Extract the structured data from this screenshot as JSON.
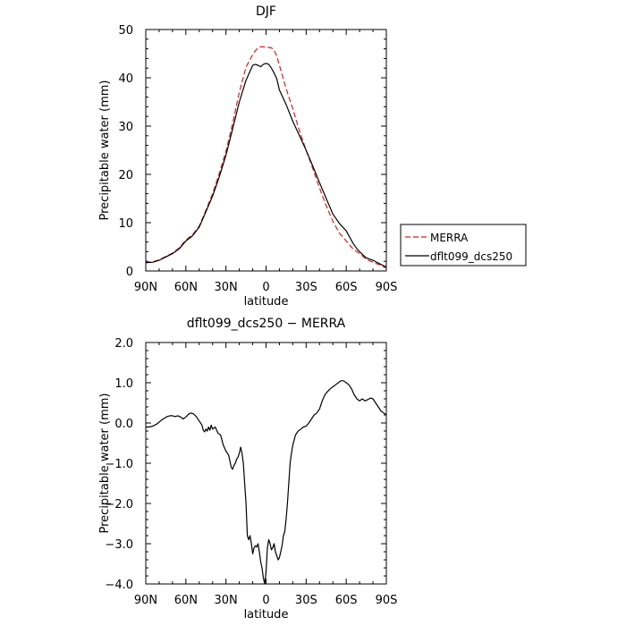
{
  "chart_data": [
    {
      "type": "line",
      "title": "DJF",
      "xlabel": "latitude",
      "ylabel": "Precipitable water (mm)",
      "xlim": [
        90,
        -90
      ],
      "ylim": [
        0,
        50
      ],
      "x_ticks": [
        90,
        60,
        30,
        0,
        -30,
        -60,
        -90
      ],
      "x_tick_labels": [
        "90N",
        "60N",
        "30N",
        "0",
        "30S",
        "60S",
        "90S"
      ],
      "y_ticks": [
        0,
        10,
        20,
        30,
        40,
        50
      ],
      "y_tick_labels": [
        "0",
        "10",
        "20",
        "30",
        "40",
        "50"
      ],
      "grid": false,
      "legend_position": "right",
      "series": [
        {
          "name": "MERRA",
          "color": "#e31a1c",
          "style": "dashed",
          "x": [
            90,
            85,
            80,
            75,
            70,
            65,
            60,
            55,
            50,
            45,
            40,
            35,
            30,
            25,
            20,
            15,
            10,
            8,
            6,
            4,
            2,
            0,
            -2,
            -4,
            -6,
            -8,
            -10,
            -15,
            -20,
            -25,
            -30,
            -35,
            -40,
            -45,
            -50,
            -55,
            -60,
            -65,
            -68,
            -70,
            -75,
            -80,
            -85,
            -90
          ],
          "y": [
            1.8,
            1.9,
            2.3,
            3.0,
            3.7,
            4.8,
            6.4,
            7.5,
            9.3,
            12.6,
            16.0,
            20.2,
            24.8,
            30.5,
            37.0,
            42.2,
            44.8,
            45.6,
            46.2,
            46.4,
            46.4,
            46.3,
            46.3,
            46.2,
            45.7,
            44.5,
            42.6,
            37.8,
            33.6,
            29.0,
            25.0,
            21.2,
            17.2,
            13.5,
            10.3,
            7.8,
            6.2,
            4.6,
            4.0,
            3.6,
            2.4,
            1.8,
            1.3,
            0.6
          ]
        },
        {
          "name": "dflt099_dcs250",
          "color": "#000000",
          "style": "solid",
          "x": [
            90,
            85,
            80,
            75,
            70,
            65,
            60,
            55,
            50,
            45,
            40,
            35,
            30,
            25,
            20,
            15,
            10,
            8,
            6,
            4,
            2,
            0,
            -2,
            -4,
            -6,
            -8,
            -10,
            -15,
            -20,
            -25,
            -30,
            -35,
            -40,
            -45,
            -50,
            -55,
            -60,
            -65,
            -68,
            -70,
            -75,
            -80,
            -85,
            -90
          ],
          "y": [
            1.7,
            1.8,
            2.2,
            2.9,
            3.6,
            4.6,
            6.2,
            7.3,
            9.1,
            12.3,
            15.5,
            19.5,
            24.0,
            29.4,
            35.0,
            39.5,
            42.6,
            42.8,
            42.6,
            42.3,
            42.8,
            43.0,
            42.8,
            42.0,
            41.0,
            39.8,
            37.5,
            34.5,
            31.0,
            28.0,
            25.0,
            21.7,
            18.3,
            15.0,
            11.8,
            9.8,
            8.3,
            5.8,
            4.6,
            4.0,
            2.7,
            2.2,
            1.5,
            0.8
          ]
        }
      ]
    },
    {
      "type": "line",
      "title": "dflt099_dcs250 − MERRA",
      "xlabel": "latitude",
      "ylabel": "Precipitable water (mm)",
      "xlim": [
        90,
        -90
      ],
      "ylim": [
        -4.0,
        2.0
      ],
      "x_ticks": [
        90,
        60,
        30,
        0,
        -30,
        -60,
        -90
      ],
      "x_tick_labels": [
        "90N",
        "60N",
        "30N",
        "0",
        "30S",
        "60S",
        "90S"
      ],
      "y_ticks": [
        -4.0,
        -3.0,
        -2.0,
        -1.0,
        0.0,
        1.0,
        2.0
      ],
      "y_tick_labels": [
        "−4.0",
        "−3.0",
        "−2.0",
        "−1.0",
        "0.0",
        "1.0",
        "2.0"
      ],
      "grid": false,
      "series": [
        {
          "name": "",
          "color": "#000000",
          "style": "solid",
          "x": [
            90,
            88,
            85,
            82,
            80,
            78,
            76,
            74,
            72,
            70,
            68,
            66,
            64,
            62,
            60,
            58,
            56,
            54,
            52,
            50,
            48,
            47,
            46,
            45,
            44,
            43,
            42,
            41,
            40,
            38,
            36,
            34,
            32,
            30,
            28,
            26,
            25,
            24,
            23,
            22,
            21,
            20,
            19,
            18,
            17,
            16,
            15,
            14,
            13,
            12,
            11,
            10,
            9,
            8,
            7,
            6,
            5,
            4,
            3,
            2,
            1,
            0,
            -1,
            -2,
            -3,
            -4,
            -5,
            -6,
            -7,
            -8,
            -9,
            -10,
            -11,
            -12,
            -13,
            -14,
            -15,
            -16,
            -17,
            -18,
            -19,
            -20,
            -22,
            -24,
            -26,
            -28,
            -30,
            -32,
            -34,
            -36,
            -38,
            -40,
            -42,
            -44,
            -46,
            -48,
            -50,
            -52,
            -54,
            -56,
            -58,
            -60,
            -62,
            -64,
            -66,
            -68,
            -70,
            -72,
            -74,
            -76,
            -78,
            -80,
            -82,
            -84,
            -86,
            -88,
            -90
          ],
          "y": [
            -0.1,
            -0.1,
            -0.08,
            -0.03,
            0.02,
            0.08,
            0.12,
            0.16,
            0.18,
            0.18,
            0.16,
            0.18,
            0.15,
            0.1,
            0.15,
            0.22,
            0.25,
            0.22,
            0.15,
            0.05,
            -0.05,
            -0.18,
            -0.22,
            -0.15,
            -0.2,
            -0.1,
            -0.18,
            -0.05,
            -0.15,
            -0.1,
            -0.25,
            -0.3,
            -0.55,
            -0.7,
            -0.8,
            -1.1,
            -1.15,
            -1.05,
            -1.0,
            -0.9,
            -0.85,
            -0.75,
            -0.6,
            -0.75,
            -1.0,
            -1.5,
            -2.0,
            -2.8,
            -2.9,
            -2.8,
            -3.0,
            -3.25,
            -3.1,
            -3.05,
            -3.08,
            -3.0,
            -3.2,
            -3.45,
            -3.6,
            -3.85,
            -4.0,
            -3.7,
            -3.1,
            -2.9,
            -3.0,
            -3.15,
            -3.1,
            -3.0,
            -3.2,
            -3.3,
            -3.4,
            -3.35,
            -3.2,
            -3.05,
            -2.8,
            -2.7,
            -2.4,
            -2.0,
            -1.5,
            -1.0,
            -0.75,
            -0.55,
            -0.3,
            -0.2,
            -0.15,
            -0.1,
            -0.08,
            0.0,
            0.1,
            0.2,
            0.25,
            0.35,
            0.55,
            0.7,
            0.78,
            0.85,
            0.9,
            0.95,
            1.0,
            1.05,
            1.05,
            1.0,
            0.95,
            0.85,
            0.7,
            0.6,
            0.55,
            0.6,
            0.55,
            0.58,
            0.62,
            0.6,
            0.5,
            0.4,
            0.3,
            0.25,
            0.2
          ]
        }
      ]
    }
  ]
}
